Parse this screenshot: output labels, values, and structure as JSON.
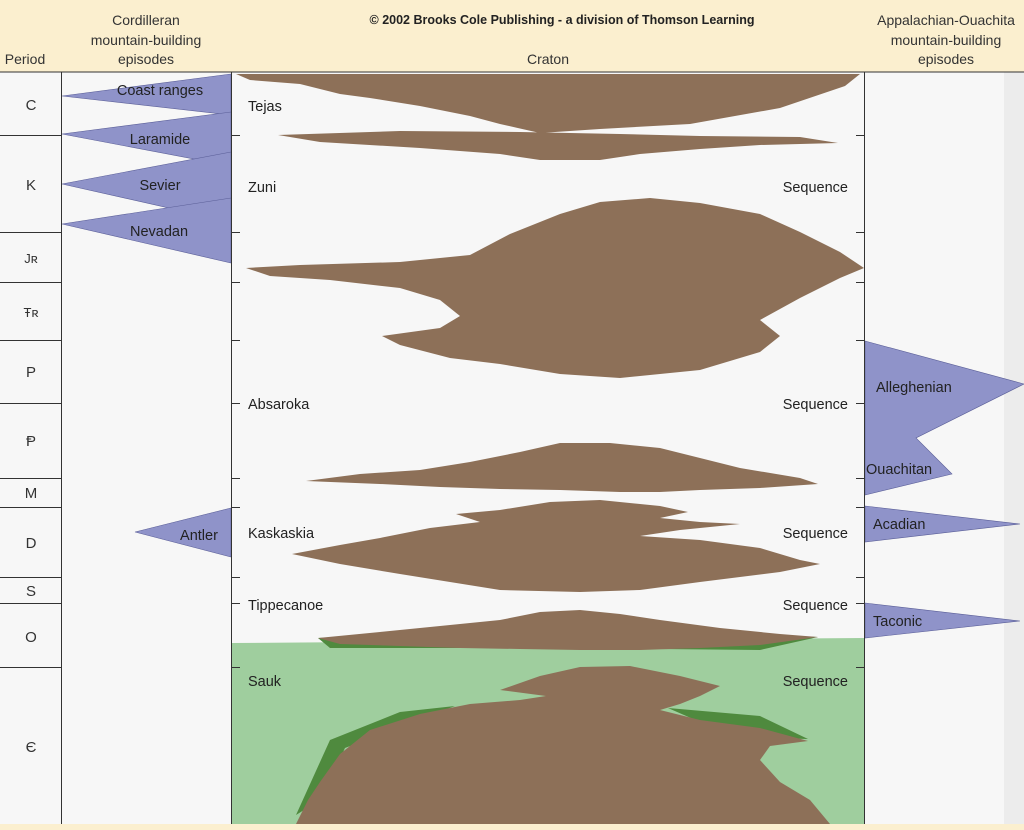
{
  "copyright": "© 2002 Brooks Cole Publishing - a division of Thomson Learning",
  "headers": {
    "period": "Period",
    "cordilleran_lines": [
      "Cordilleran",
      "mountain-building",
      "episodes"
    ],
    "craton": "Craton",
    "appalachian_lines": [
      "Appalachian-Ouachita",
      "mountain-building",
      "episodes"
    ]
  },
  "periods": [
    "C",
    "K",
    "Jʀ",
    "Ŧʀ",
    "P",
    "Ᵽ",
    "M",
    "D",
    "S",
    "O",
    "Є"
  ],
  "cordilleran_episodes": [
    "Coast ranges",
    "Laramide",
    "Sevier",
    "Nevadan",
    "Antler"
  ],
  "appalachian_episodes": [
    "Alleghenian",
    "Ouachitan",
    "Acadian",
    "Taconic"
  ],
  "sequences": {
    "tejas": "Tejas",
    "zuni": "Zuni",
    "absaroka": "Absaroka",
    "kaskaskia": "Kaskaskia",
    "tippecanoe": "Tippecanoe",
    "sauk": "Sauk",
    "word": "Sequence"
  },
  "colors": {
    "background": "#fbefcf",
    "panel": "#f7f7f7",
    "orogeny": "#8f93c9",
    "sediment": "#8d7058",
    "sauk_sea": "#9fce9e",
    "sauk_edge": "#4f8a3e"
  }
}
